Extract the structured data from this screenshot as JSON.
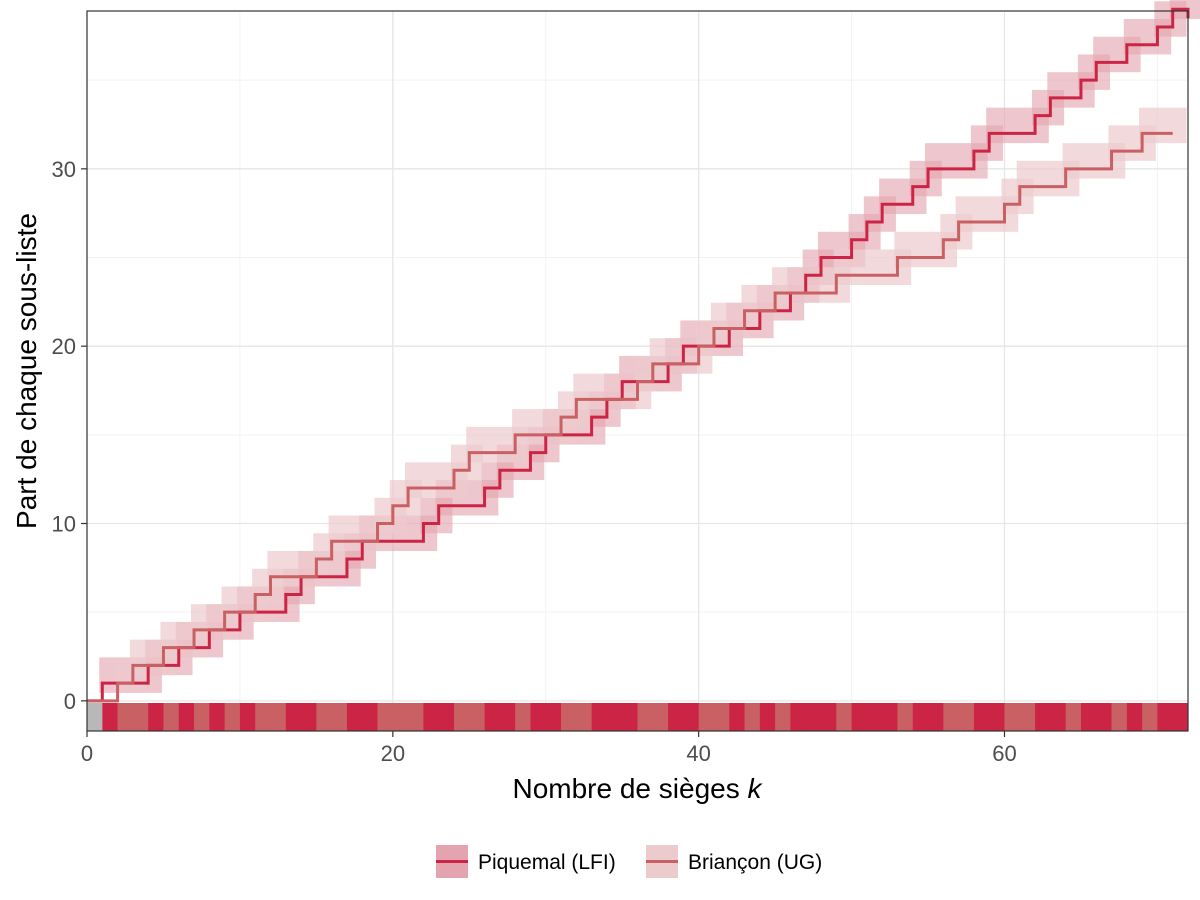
{
  "chart_data": {
    "type": "line",
    "subtype": "step",
    "title": "",
    "xlabel": "Nombre de sièges",
    "xlabel_italic_var": "k",
    "ylabel": "Part de chaque sous-liste",
    "xlim": [
      0,
      72
    ],
    "ylim": [
      -1.7,
      38.9
    ],
    "x_ticks": [
      0,
      20,
      40,
      60
    ],
    "y_ticks": [
      0,
      10,
      20,
      30
    ],
    "grid": true,
    "legend_position": "bottom",
    "series": [
      {
        "name": "Piquemal (LFI)",
        "color": "#cc2444",
        "band_color": "#e3a4b0",
        "end_k": 72,
        "end_value": 38.5,
        "k_at_value": [
          1,
          4,
          6,
          8,
          10,
          13,
          14,
          17,
          18,
          22,
          23,
          26,
          27,
          29,
          30,
          33,
          34,
          35,
          38,
          39,
          42,
          44,
          46,
          47,
          48,
          50,
          51,
          52,
          54,
          55,
          58,
          59,
          62,
          63,
          65,
          66,
          68,
          70,
          71
        ]
      },
      {
        "name": "Briançon (UG)",
        "color": "#c96063",
        "band_color": "#eccbcd",
        "end_k": 71,
        "end_value": 32,
        "k_at_value": [
          2,
          3,
          5,
          7,
          9,
          11,
          12,
          15,
          16,
          19,
          20,
          21,
          24,
          25,
          28,
          31,
          32,
          36,
          37,
          40,
          41,
          43,
          45,
          49,
          53,
          56,
          57,
          60,
          61,
          64,
          67,
          69
        ]
      }
    ],
    "rug": {
      "y_value": -0.9,
      "colors_by_series": [
        "#cc2444",
        "#c96063"
      ],
      "undetermined_color": "#b8b8b8"
    }
  }
}
